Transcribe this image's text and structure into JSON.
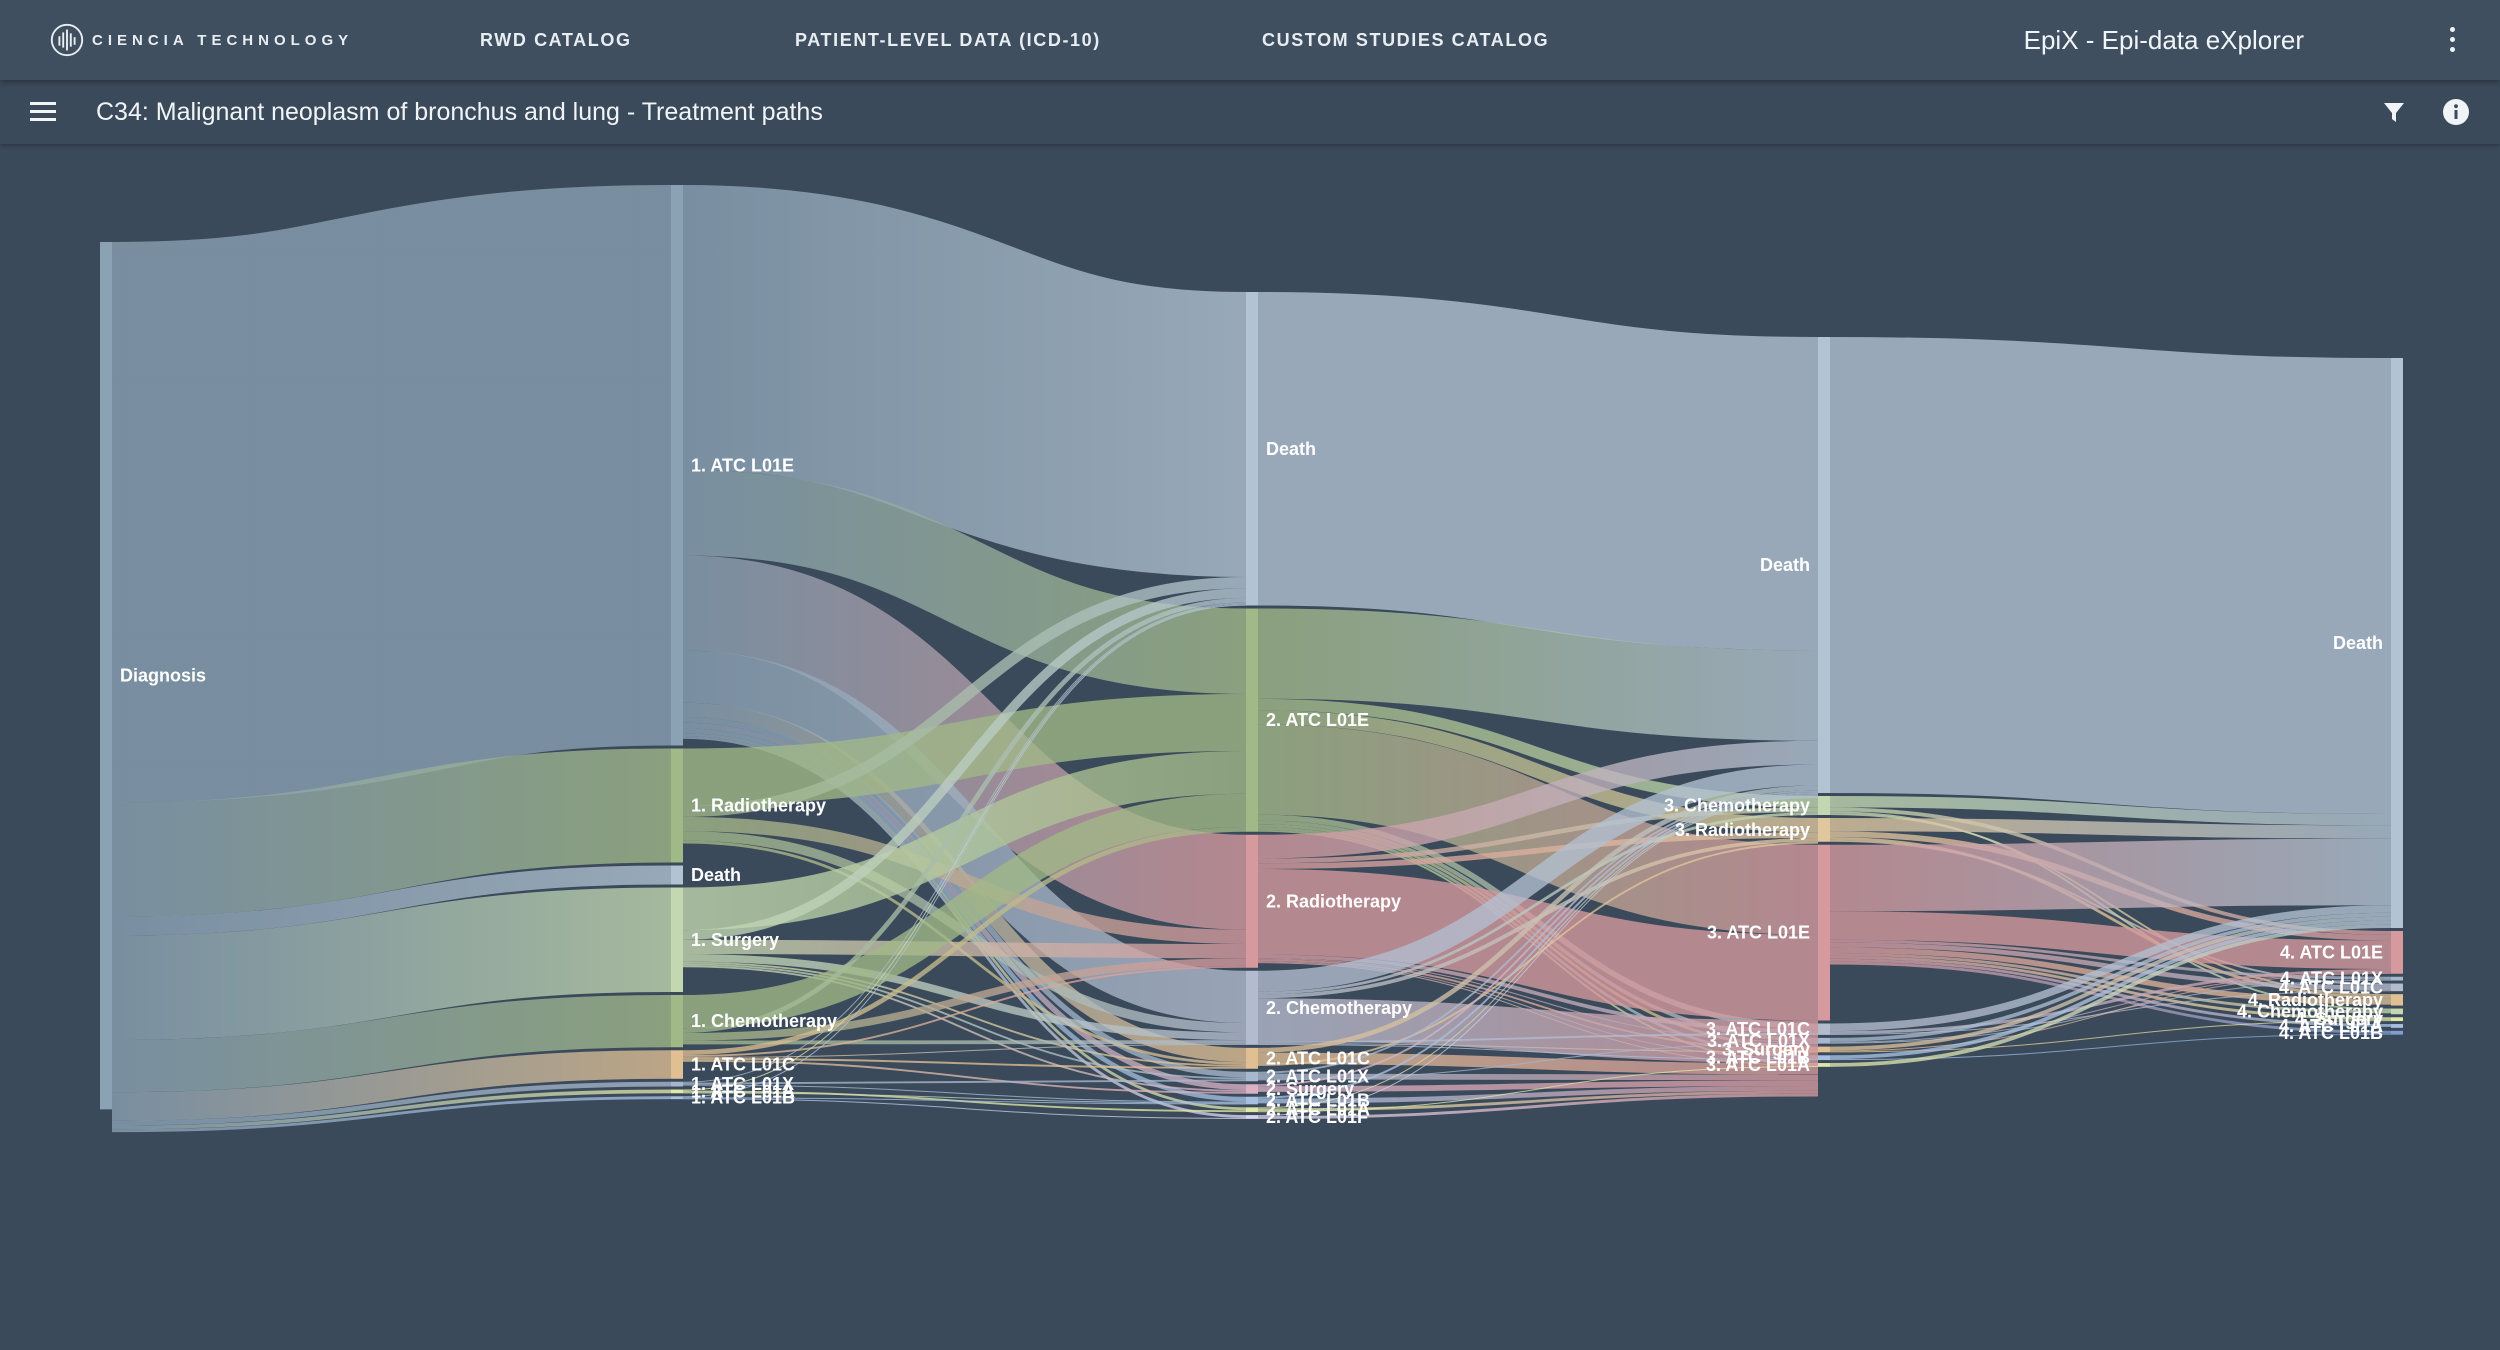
{
  "header": {
    "logo_text": "CIENCIA TECHNOLOGY",
    "nav": [
      "RWD CATALOG",
      "PATIENT-LEVEL DATA (ICD-10)",
      "CUSTOM STUDIES CATALOG"
    ],
    "app_title": "EpiX - Epi-data eXplorer"
  },
  "subheader": {
    "title": "C34: Malignant neoplasm of bronchus and lung - Treatment paths"
  },
  "icons": [
    "menu-icon",
    "filter-icon",
    "info-icon",
    "more-vert-icon",
    "ciencia-logo-icon"
  ],
  "colors": {
    "background": "#3b4a5b",
    "topbar": "#3f4f60",
    "atc_l01e": "#8aa2b4",
    "radiotherapy": "#a1b887",
    "chemotherapy": "#b3bccf",
    "surgery": "#c3d8b0",
    "death": "#b2c3d2",
    "atc_l01c": "#e0bf92",
    "atc_l01x": "#a7b7cd",
    "atc_l01a": "#dfe6a6",
    "atc_l01b": "#a6c0e2",
    "atc_l01f": "#d9d4ec",
    "radiotherapy_2": "#d6999e"
  },
  "chart_data": {
    "type": "sankey",
    "title": "C34: Malignant neoplasm of bronchus and lung - Treatment paths",
    "levels": [
      [
        "Diagnosis"
      ],
      [
        "1. ATC L01E",
        "1. Radiotherapy",
        "Death",
        "1. Surgery",
        "1. Chemotherapy",
        "1. ATC L01C",
        "1. ATC L01X",
        "1. ATC L01A",
        "1. ATC L01B"
      ],
      [
        "Death",
        "2. ATC L01E",
        "2. Radiotherapy",
        "2. Chemotherapy",
        "2. ATC L01C",
        "2. ATC L01X",
        "2. Surgery",
        "2. ATC L01B",
        "2. ATC L01A",
        "2. ATC L01F"
      ],
      [
        "Death",
        "3. Chemotherapy",
        "3. Radiotherapy",
        "3. ATC L01E",
        "3. ATC L01C",
        "3. ATC L01X",
        "3. Surgery",
        "3. ATC L01B",
        "3. ATC L01A"
      ],
      [
        "Death",
        "4. ATC L01E",
        "4. ATC L01X",
        "4. ATC L01C",
        "4. Radiotherapy",
        "4. Chemotherapy",
        "4. Surgery",
        "4. ATC L01A",
        "4. ATC L01B"
      ]
    ],
    "nodes": [
      {
        "id": "diag",
        "label": "Diagnosis",
        "level": 0,
        "value": 913,
        "color": "#8aa2b4"
      },
      {
        "id": "a1",
        "label": "1. ATC L01E",
        "level": 1,
        "value": 590,
        "color": "#8aa2b4"
      },
      {
        "id": "r1",
        "label": "1. Radiotherapy",
        "level": 1,
        "value": 120,
        "color": "#a1b887"
      },
      {
        "id": "d1",
        "label": "Death",
        "level": 1,
        "value": 20,
        "color": "#b2c3d2"
      },
      {
        "id": "s1",
        "label": "1. Surgery",
        "level": 1,
        "value": 110,
        "color": "#c3d8b0"
      },
      {
        "id": "c1",
        "label": "1. Chemotherapy",
        "level": 1,
        "value": 55,
        "color": "#a1b887"
      },
      {
        "id": "l01c1",
        "label": "1. ATC L01C",
        "level": 1,
        "value": 30,
        "color": "#e0bf92"
      },
      {
        "id": "l01x1",
        "label": "1. ATC L01X",
        "level": 1,
        "value": 5,
        "color": "#a7b7cd"
      },
      {
        "id": "l01a1",
        "label": "1. ATC L01A",
        "level": 1,
        "value": 4,
        "color": "#dfe6a6"
      },
      {
        "id": "l01b1",
        "label": "1. ATC L01B",
        "level": 1,
        "value": 3,
        "color": "#a6c0e2"
      },
      {
        "id": "d2",
        "label": "Death",
        "level": 2,
        "value": 330,
        "color": "#b2c3d2"
      },
      {
        "id": "a2",
        "label": "2. ATC L01E",
        "level": 2,
        "value": 235,
        "color": "#a1b887"
      },
      {
        "id": "r2",
        "label": "2. Radiotherapy",
        "level": 2,
        "value": 140,
        "color": "#d6999e"
      },
      {
        "id": "c2",
        "label": "2. Chemotherapy",
        "level": 2,
        "value": 78,
        "color": "#b3bccf"
      },
      {
        "id": "l01c2",
        "label": "2. ATC L01C",
        "level": 2,
        "value": 22,
        "color": "#e0bf92"
      },
      {
        "id": "l01x2",
        "label": "2. ATC L01X",
        "level": 2,
        "value": 10,
        "color": "#a7b7cd"
      },
      {
        "id": "s2",
        "label": "2. Surgery",
        "level": 2,
        "value": 10,
        "color": "#d9b0c4"
      },
      {
        "id": "l01b2",
        "label": "2. ATC L01B",
        "level": 2,
        "value": 8,
        "color": "#a6c0e2"
      },
      {
        "id": "l01a2",
        "label": "2. ATC L01A",
        "level": 2,
        "value": 5,
        "color": "#dfe6a6"
      },
      {
        "id": "l01f2",
        "label": "2. ATC L01F",
        "level": 2,
        "value": 4,
        "color": "#d9d4ec"
      },
      {
        "id": "d3",
        "label": "Death",
        "level": 3,
        "value": 480,
        "color": "#b2c3d2"
      },
      {
        "id": "c3",
        "label": "3. Chemotherapy",
        "level": 3,
        "value": 20,
        "color": "#c3d8b0"
      },
      {
        "id": "r3",
        "label": "3. Radiotherapy",
        "level": 3,
        "value": 25,
        "color": "#e0c79e"
      },
      {
        "id": "a3",
        "label": "3. ATC L01E",
        "level": 3,
        "value": 185,
        "color": "#d6999e"
      },
      {
        "id": "l01c3",
        "label": "3. ATC L01C",
        "level": 3,
        "value": 12,
        "color": "#b3bccf"
      },
      {
        "id": "l01x3",
        "label": "3. ATC L01X",
        "level": 3,
        "value": 6,
        "color": "#a7b7cd"
      },
      {
        "id": "s3",
        "label": "3. Surgery",
        "level": 3,
        "value": 6,
        "color": "#e0bf92"
      },
      {
        "id": "l01b3",
        "label": "3. ATC L01B",
        "level": 3,
        "value": 5,
        "color": "#a6c0e2"
      },
      {
        "id": "l01a3",
        "label": "3. ATC L01A",
        "level": 3,
        "value": 4,
        "color": "#dfe6a6"
      },
      {
        "id": "d4",
        "label": "Death",
        "level": 4,
        "value": 600,
        "color": "#b2c3d2"
      },
      {
        "id": "a4",
        "label": "4. ATC L01E",
        "level": 4,
        "value": 45,
        "color": "#d6999e"
      },
      {
        "id": "l01x4",
        "label": "4. ATC L01X",
        "level": 4,
        "value": 4,
        "color": "#a7b7cd"
      },
      {
        "id": "l01c4",
        "label": "4. ATC L01C",
        "level": 4,
        "value": 8,
        "color": "#b3bccf"
      },
      {
        "id": "r4",
        "label": "4. Radiotherapy",
        "level": 4,
        "value": 12,
        "color": "#e0bf92"
      },
      {
        "id": "c4",
        "label": "4. Chemotherapy",
        "level": 4,
        "value": 6,
        "color": "#c3d8b0"
      },
      {
        "id": "s4",
        "label": "4. Surgery",
        "level": 4,
        "value": 4,
        "color": "#dfe6a6"
      },
      {
        "id": "l01a4",
        "label": "4. ATC L01A",
        "level": 4,
        "value": 4,
        "color": "#a6c0e2"
      },
      {
        "id": "l01b4",
        "label": "4. ATC L01B",
        "level": 4,
        "value": 4,
        "color": "#7f9fd0"
      }
    ],
    "links": [
      [
        "diag",
        "a1",
        590
      ],
      [
        "diag",
        "r1",
        120
      ],
      [
        "diag",
        "d1",
        20
      ],
      [
        "diag",
        "s1",
        110
      ],
      [
        "diag",
        "c1",
        55
      ],
      [
        "diag",
        "l01c1",
        30
      ],
      [
        "diag",
        "l01x1",
        5
      ],
      [
        "diag",
        "l01a1",
        4
      ],
      [
        "diag",
        "l01b1",
        3
      ],
      [
        "a1",
        "d2",
        300
      ],
      [
        "a1",
        "a2",
        90
      ],
      [
        "a1",
        "r2",
        100
      ],
      [
        "a1",
        "c2",
        55
      ],
      [
        "a1",
        "l01c2",
        15
      ],
      [
        "a1",
        "l01x2",
        6
      ],
      [
        "a1",
        "s2",
        6
      ],
      [
        "a1",
        "l01b2",
        5
      ],
      [
        "a1",
        "l01a2",
        3
      ],
      [
        "a1",
        "l01f2",
        3
      ],
      [
        "r1",
        "a2",
        60
      ],
      [
        "r1",
        "d2",
        12
      ],
      [
        "r1",
        "r2",
        15
      ],
      [
        "r1",
        "c2",
        10
      ],
      [
        "r1",
        "l01c2",
        3
      ],
      [
        "s1",
        "a2",
        45
      ],
      [
        "s1",
        "d2",
        10
      ],
      [
        "s1",
        "r2",
        15
      ],
      [
        "s1",
        "c2",
        8
      ],
      [
        "s1",
        "l01c2",
        2
      ],
      [
        "s1",
        "l01x2",
        2
      ],
      [
        "s1",
        "s2",
        2
      ],
      [
        "c1",
        "a2",
        35
      ],
      [
        "c1",
        "d2",
        5
      ],
      [
        "c1",
        "r2",
        8
      ],
      [
        "c1",
        "c2",
        4
      ],
      [
        "l01c1",
        "a2",
        5
      ],
      [
        "l01c1",
        "r2",
        2
      ],
      [
        "l01c1",
        "c2",
        1
      ],
      [
        "l01c1",
        "l01c2",
        2
      ],
      [
        "l01c1",
        "s2",
        2
      ],
      [
        "l01x1",
        "d2",
        1
      ],
      [
        "l01x1",
        "l01x2",
        2
      ],
      [
        "l01x1",
        "l01b2",
        1
      ],
      [
        "l01a1",
        "d2",
        1
      ],
      [
        "l01a1",
        "l01a2",
        2
      ],
      [
        "l01a1",
        "l01b2",
        1
      ],
      [
        "l01b1",
        "d2",
        1
      ],
      [
        "l01b1",
        "l01b2",
        1
      ],
      [
        "l01b1",
        "l01f2",
        1
      ],
      [
        "d2",
        "d3",
        330
      ],
      [
        "a2",
        "d3",
        95
      ],
      [
        "a2",
        "c3",
        12
      ],
      [
        "a2",
        "r3",
        15
      ],
      [
        "a2",
        "a3",
        95
      ],
      [
        "a2",
        "l01c3",
        6
      ],
      [
        "a2",
        "l01x3",
        4
      ],
      [
        "a2",
        "s3",
        3
      ],
      [
        "a2",
        "l01b3",
        3
      ],
      [
        "a2",
        "l01a3",
        2
      ],
      [
        "r2",
        "d3",
        25
      ],
      [
        "r2",
        "c3",
        5
      ],
      [
        "r2",
        "r3",
        6
      ],
      [
        "r2",
        "a3",
        90
      ],
      [
        "r2",
        "l01c3",
        4
      ],
      [
        "r2",
        "l01x3",
        1
      ],
      [
        "r2",
        "s3",
        2
      ],
      [
        "r2",
        "l01b3",
        1
      ],
      [
        "r2",
        "l01a3",
        1
      ],
      [
        "c2",
        "d3",
        22
      ],
      [
        "c2",
        "c3",
        3
      ],
      [
        "c2",
        "r3",
        4
      ],
      [
        "c2",
        "a3",
        45
      ],
      [
        "c2",
        "l01c3",
        2
      ],
      [
        "c2",
        "s3",
        1
      ],
      [
        "c2",
        "l01b3",
        1
      ],
      [
        "l01c2",
        "d3",
        5
      ],
      [
        "l01c2",
        "a3",
        12
      ],
      [
        "l01c2",
        "r3",
        2
      ],
      [
        "l01x2",
        "d3",
        2
      ],
      [
        "l01x2",
        "a3",
        6
      ],
      [
        "l01x2",
        "l01x3",
        1
      ],
      [
        "s2",
        "d3",
        2
      ],
      [
        "s2",
        "a3",
        6
      ],
      [
        "l01b2",
        "d3",
        2
      ],
      [
        "l01b2",
        "a3",
        5
      ],
      [
        "l01a2",
        "d3",
        1
      ],
      [
        "l01a2",
        "a3",
        3
      ],
      [
        "l01a2",
        "l01a3",
        1
      ],
      [
        "l01f2",
        "d3",
        1
      ],
      [
        "l01f2",
        "a3",
        3
      ],
      [
        "d3",
        "d4",
        480
      ],
      [
        "c3",
        "d4",
        12
      ],
      [
        "c3",
        "a4",
        4
      ],
      [
        "c3",
        "c4",
        2
      ],
      [
        "c3",
        "r4",
        2
      ],
      [
        "r3",
        "d4",
        14
      ],
      [
        "r3",
        "a4",
        6
      ],
      [
        "r3",
        "r4",
        3
      ],
      [
        "r3",
        "l01c4",
        2
      ],
      [
        "a3",
        "d4",
        70
      ],
      [
        "a3",
        "a4",
        30
      ],
      [
        "a3",
        "l01x4",
        3
      ],
      [
        "a3",
        "l01c4",
        5
      ],
      [
        "a3",
        "r4",
        6
      ],
      [
        "a3",
        "c4",
        3
      ],
      [
        "a3",
        "s4",
        3
      ],
      [
        "a3",
        "l01a4",
        3
      ],
      [
        "a3",
        "l01b4",
        3
      ],
      [
        "l01c3",
        "d4",
        8
      ],
      [
        "l01c3",
        "a4",
        3
      ],
      [
        "l01c3",
        "l01c4",
        1
      ],
      [
        "l01x3",
        "d4",
        4
      ],
      [
        "l01x3",
        "a4",
        1
      ],
      [
        "l01x3",
        "l01x4",
        1
      ],
      [
        "s3",
        "d4",
        4
      ],
      [
        "s3",
        "a4",
        1
      ],
      [
        "s3",
        "s4",
        1
      ],
      [
        "l01b3",
        "d4",
        4
      ],
      [
        "l01b3",
        "l01b4",
        1
      ],
      [
        "l01a3",
        "d4",
        4
      ]
    ]
  }
}
